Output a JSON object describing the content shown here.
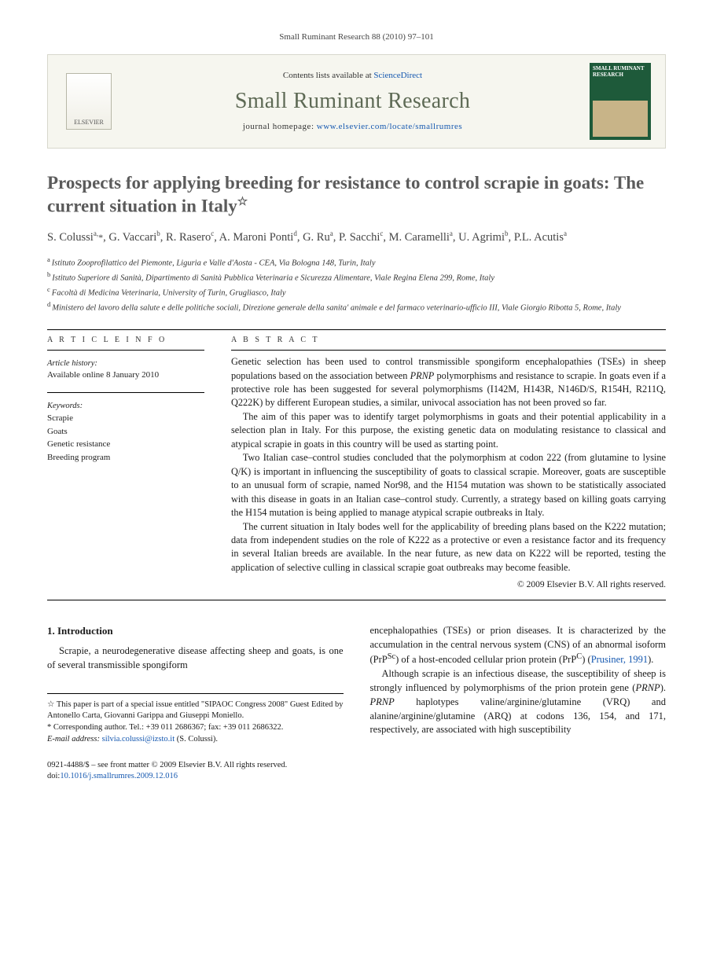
{
  "running_head": "Small Ruminant Research 88 (2010) 97–101",
  "banner": {
    "publisher_label": "ELSEVIER",
    "contents_prefix": "Contents lists available at ",
    "contents_link_text": "ScienceDirect",
    "journal_name": "Small Ruminant Research",
    "homepage_prefix": "journal homepage: ",
    "homepage_url_text": "www.elsevier.com/locate/smallrumres",
    "cover_title": "SMALL RUMINANT RESEARCH"
  },
  "title": "Prospects for applying breeding for resistance to control scrapie in goats: The current situation in Italy",
  "title_note_marker": "☆",
  "authors_html": "S. Colussi<sup>a,</sup><span class='corr'>*</span>, G. Vaccari<sup>b</sup>, R. Rasero<sup>c</sup>, A. Maroni Ponti<sup>d</sup>, G. Ru<sup>a</sup>, P. Sacchi<sup>c</sup>, M. Caramelli<sup>a</sup>, U. Agrimi<sup>b</sup>, P.L. Acutis<sup>a</sup>",
  "affiliations": [
    {
      "key": "a",
      "text": "Istituto Zooprofilattico del Piemonte, Liguria e Valle d'Aosta - CEA, Via Bologna 148, Turin, Italy"
    },
    {
      "key": "b",
      "text": "Istituto Superiore di Sanità, Dipartimento di Sanità Pubblica Veterinaria e Sicurezza Alimentare, Viale Regina Elena 299, Rome, Italy"
    },
    {
      "key": "c",
      "text": "Facoltà di Medicina Veterinaria, University of Turin, Grugliasco, Italy"
    },
    {
      "key": "d",
      "text": "Ministero del lavoro della salute e delle politiche sociali, Direzione generale della sanita' animale e del farmaco veterinario-ufficio III, Viale Giorgio Ribotta 5, Rome, Italy"
    }
  ],
  "article_info": {
    "section_label": "A R T I C L E   I N F O",
    "history_label": "Article history:",
    "history_text": "Available online 8 January 2010",
    "keywords_label": "Keywords:",
    "keywords": [
      "Scrapie",
      "Goats",
      "Genetic resistance",
      "Breeding program"
    ]
  },
  "abstract": {
    "section_label": "A B S T R A C T",
    "paragraphs": [
      "Genetic selection has been used to control transmissible spongiform encephalopathies (TSEs) in sheep populations based on the association between PRNP polymorphisms and resistance to scrapie. In goats even if a protective role has been suggested for several polymorphisms (I142M, H143R, N146D/S, R154H, R211Q, Q222K) by different European studies, a similar, univocal association has not been proved so far.",
      "The aim of this paper was to identify target polymorphisms in goats and their potential applicability in a selection plan in Italy. For this purpose, the existing genetic data on modulating resistance to classical and atypical scrapie in goats in this country will be used as starting point.",
      "Two Italian case–control studies concluded that the polymorphism at codon 222 (from glutamine to lysine Q/K) is important in influencing the susceptibility of goats to classical scrapie. Moreover, goats are susceptible to an unusual form of scrapie, named Nor98, and the H154 mutation was shown to be statistically associated with this disease in goats in an Italian case–control study. Currently, a strategy based on killing goats carrying the H154 mutation is being applied to manage atypical scrapie outbreaks in Italy.",
      "The current situation in Italy bodes well for the applicability of breeding plans based on the K222 mutation; data from independent studies on the role of K222 as a protective or even a resistance factor and its frequency in several Italian breeds are available. In the near future, as new data on K222 will be reported, testing the application of selective culling in classical scrapie goat outbreaks may become feasible."
    ],
    "copyright": "© 2009 Elsevier B.V. All rights reserved."
  },
  "body": {
    "heading_num": "1.",
    "heading_text": "Introduction",
    "colA_paras": [
      "Scrapie, a neurodegenerative disease affecting sheep and goats, is one of several transmissible spongiform"
    ],
    "colB_paras": [
      "encephalopathies (TSEs) or prion diseases. It is characterized by the accumulation in the central nervous system (CNS) of an abnormal isoform (PrPSc) of a host-encoded cellular prion protein (PrPC) (Prusiner, 1991).",
      "Although scrapie is an infectious disease, the susceptibility of sheep is strongly influenced by polymorphisms of the prion protein gene (PRNP). PRNP haplotypes valine/arginine/glutamine (VRQ) and alanine/arginine/glutamine (ARQ) at codons 136, 154, and 171, respectively, are associated with high susceptibility"
    ],
    "ref_link_text": "Prusiner, 1991"
  },
  "footnotes": {
    "star_note": "This paper is part of a special issue entitled \"SIPAOC Congress 2008\" Guest Edited by Antonello Carta, Giovanni Garippa and Giuseppi Moniello.",
    "corr_label": "Corresponding author.",
    "corr_tel": "Tel.: +39 011 2686367; fax: +39 011 2686322.",
    "email_label": "E-mail address:",
    "email": "silvia.colussi@izsto.it",
    "email_person": "(S. Colussi)."
  },
  "footer": {
    "issn_line": "0921-4488/$ – see front matter © 2009 Elsevier B.V. All rights reserved.",
    "doi_prefix": "doi:",
    "doi": "10.1016/j.smallrumres.2009.12.016"
  },
  "colors": {
    "link": "#1558b0",
    "journal_name": "#5e6a55",
    "banner_bg": "#f6f6ef",
    "banner_border": "#d7d7cc",
    "cover_bg": "#1e5a3a"
  }
}
